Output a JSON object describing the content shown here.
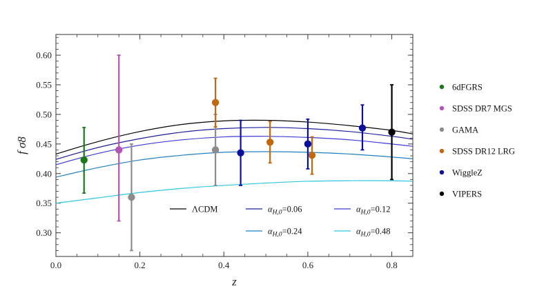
{
  "chart_data": {
    "type": "scatter",
    "title": "",
    "xlabel": "z",
    "ylabel": "f σ8",
    "xlim": [
      0.0,
      0.85
    ],
    "ylim": [
      0.26,
      0.635
    ],
    "xticks": [
      "0.0",
      "0.2",
      "0.4",
      "0.6",
      "0.8"
    ],
    "xtick_values": [
      0.0,
      0.2,
      0.4,
      0.6,
      0.8
    ],
    "yticks": [
      "0.30",
      "0.35",
      "0.40",
      "0.45",
      "0.50",
      "0.55",
      "0.60"
    ],
    "ytick_values": [
      0.3,
      0.35,
      0.4,
      0.45,
      0.5,
      0.55,
      0.6
    ],
    "grid": false,
    "series": [
      {
        "name": "6dFGRS",
        "color": "#1a7a1a",
        "points": [
          {
            "x": 0.067,
            "y": 0.423,
            "lo": 0.367,
            "hi": 0.478
          }
        ]
      },
      {
        "name": "SDSS DR7 MGS",
        "color": "#b453b4",
        "points": [
          {
            "x": 0.15,
            "y": 0.44,
            "lo": 0.32,
            "hi": 0.6
          }
        ]
      },
      {
        "name": "GAMA",
        "color": "#8c8c8c",
        "points": [
          {
            "x": 0.18,
            "y": 0.36,
            "lo": 0.27,
            "hi": 0.45
          },
          {
            "x": 0.38,
            "y": 0.44,
            "lo": 0.38,
            "hi": 0.5
          }
        ]
      },
      {
        "name": "SDSS DR12 LRG",
        "color": "#c0680f",
        "points": [
          {
            "x": 0.38,
            "y": 0.52,
            "lo": 0.479,
            "hi": 0.561
          },
          {
            "x": 0.51,
            "y": 0.453,
            "lo": 0.418,
            "hi": 0.488
          },
          {
            "x": 0.61,
            "y": 0.431,
            "lo": 0.399,
            "hi": 0.462
          }
        ]
      },
      {
        "name": "WiggleZ",
        "color": "#0b109a",
        "points": [
          {
            "x": 0.44,
            "y": 0.435,
            "lo": 0.38,
            "hi": 0.49
          },
          {
            "x": 0.6,
            "y": 0.45,
            "lo": 0.408,
            "hi": 0.492
          },
          {
            "x": 0.73,
            "y": 0.477,
            "lo": 0.44,
            "hi": 0.516
          }
        ]
      },
      {
        "name": "VIPERS",
        "color": "#000000",
        "points": [
          {
            "x": 0.8,
            "y": 0.47,
            "lo": 0.39,
            "hi": 0.55
          }
        ]
      }
    ],
    "curves": [
      {
        "label": "ΛCDM",
        "color": "#000000",
        "x": [
          0.0,
          0.1,
          0.2,
          0.3,
          0.4,
          0.5,
          0.6,
          0.7,
          0.8,
          0.85
        ],
        "y": [
          0.433,
          0.454,
          0.471,
          0.483,
          0.489,
          0.49,
          0.487,
          0.481,
          0.473,
          0.467
        ]
      },
      {
        "label": "α_{H,0}=0.06",
        "color": "#1c1c9c",
        "x": [
          0.0,
          0.1,
          0.2,
          0.3,
          0.4,
          0.5,
          0.6,
          0.7,
          0.8,
          0.85
        ],
        "y": [
          0.424,
          0.444,
          0.459,
          0.47,
          0.476,
          0.478,
          0.476,
          0.471,
          0.463,
          0.458
        ]
      },
      {
        "label": "α_{H,0}=0.12",
        "color": "#3a3ad8",
        "x": [
          0.0,
          0.1,
          0.2,
          0.3,
          0.4,
          0.5,
          0.6,
          0.7,
          0.8,
          0.85
        ],
        "y": [
          0.415,
          0.434,
          0.448,
          0.457,
          0.462,
          0.463,
          0.461,
          0.457,
          0.45,
          0.446
        ]
      },
      {
        "label": "α_{H,0}=0.24",
        "color": "#1e7fc4",
        "x": [
          0.0,
          0.1,
          0.2,
          0.3,
          0.4,
          0.5,
          0.6,
          0.7,
          0.8,
          0.85
        ],
        "y": [
          0.394,
          0.41,
          0.423,
          0.431,
          0.436,
          0.437,
          0.436,
          0.433,
          0.428,
          0.425
        ]
      },
      {
        "label": "α_{H,0}=0.48",
        "color": "#2ec8e0",
        "x": [
          0.0,
          0.1,
          0.2,
          0.3,
          0.4,
          0.5,
          0.6,
          0.7,
          0.8,
          0.85
        ],
        "y": [
          0.35,
          0.359,
          0.368,
          0.375,
          0.38,
          0.384,
          0.387,
          0.388,
          0.388,
          0.387
        ]
      }
    ],
    "legend": {
      "placement": "right",
      "entries": [
        "6dFGRS",
        "SDSS DR7 MGS",
        "GAMA",
        "SDSS DR12 LRG",
        "WiggleZ",
        "VIPERS"
      ]
    },
    "curve_legend": {
      "placement": "lower-center",
      "entries": [
        "ΛCDM",
        "α_{H,0}=0.06",
        "α_{H,0}=0.12",
        "α_{H,0}=0.24",
        "α_{H,0}=0.48"
      ]
    }
  }
}
